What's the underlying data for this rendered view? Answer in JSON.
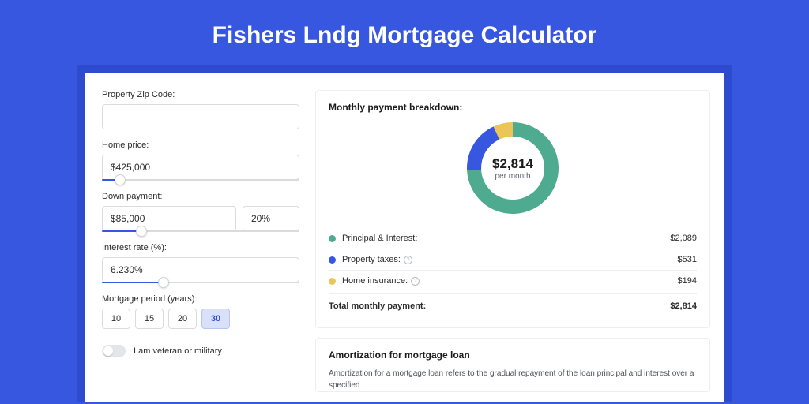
{
  "title": "Fishers Lndg Mortgage Calculator",
  "colors": {
    "page_bg": "#3857e0",
    "card_outer_bg": "#2e4bd0",
    "card_bg": "#ffffff",
    "accent": "#3857e0",
    "border": "#d9dbe0",
    "text": "#2b2b2b"
  },
  "form": {
    "zip": {
      "label": "Property Zip Code:",
      "value": ""
    },
    "home_price": {
      "label": "Home price:",
      "value": "$425,000",
      "slider_pct": 9
    },
    "down_payment": {
      "label": "Down payment:",
      "value": "$85,000",
      "pct": "20%",
      "slider_pct": 20
    },
    "interest": {
      "label": "Interest rate (%):",
      "value": "6.230%",
      "slider_pct": 31
    },
    "period": {
      "label": "Mortgage period (years):",
      "options": [
        "10",
        "15",
        "20",
        "30"
      ],
      "selected": "30"
    },
    "veteran": {
      "label": "I am veteran or military",
      "checked": false
    }
  },
  "breakdown": {
    "title": "Monthly payment breakdown:",
    "donut": {
      "amount": "$2,814",
      "sub": "per month",
      "slices": [
        {
          "label": "Principal & Interest:",
          "value": "$2,089",
          "color": "#4fab8f",
          "pct": 74.2
        },
        {
          "label": "Property taxes:",
          "value": "$531",
          "color": "#3857e0",
          "pct": 18.9,
          "info": true
        },
        {
          "label": "Home insurance:",
          "value": "$194",
          "color": "#ecc559",
          "pct": 6.9,
          "info": true
        }
      ],
      "ring_width": 18
    },
    "total": {
      "label": "Total monthly payment:",
      "value": "$2,814"
    }
  },
  "amortization": {
    "title": "Amortization for mortgage loan",
    "text": "Amortization for a mortgage loan refers to the gradual repayment of the loan principal and interest over a specified"
  }
}
